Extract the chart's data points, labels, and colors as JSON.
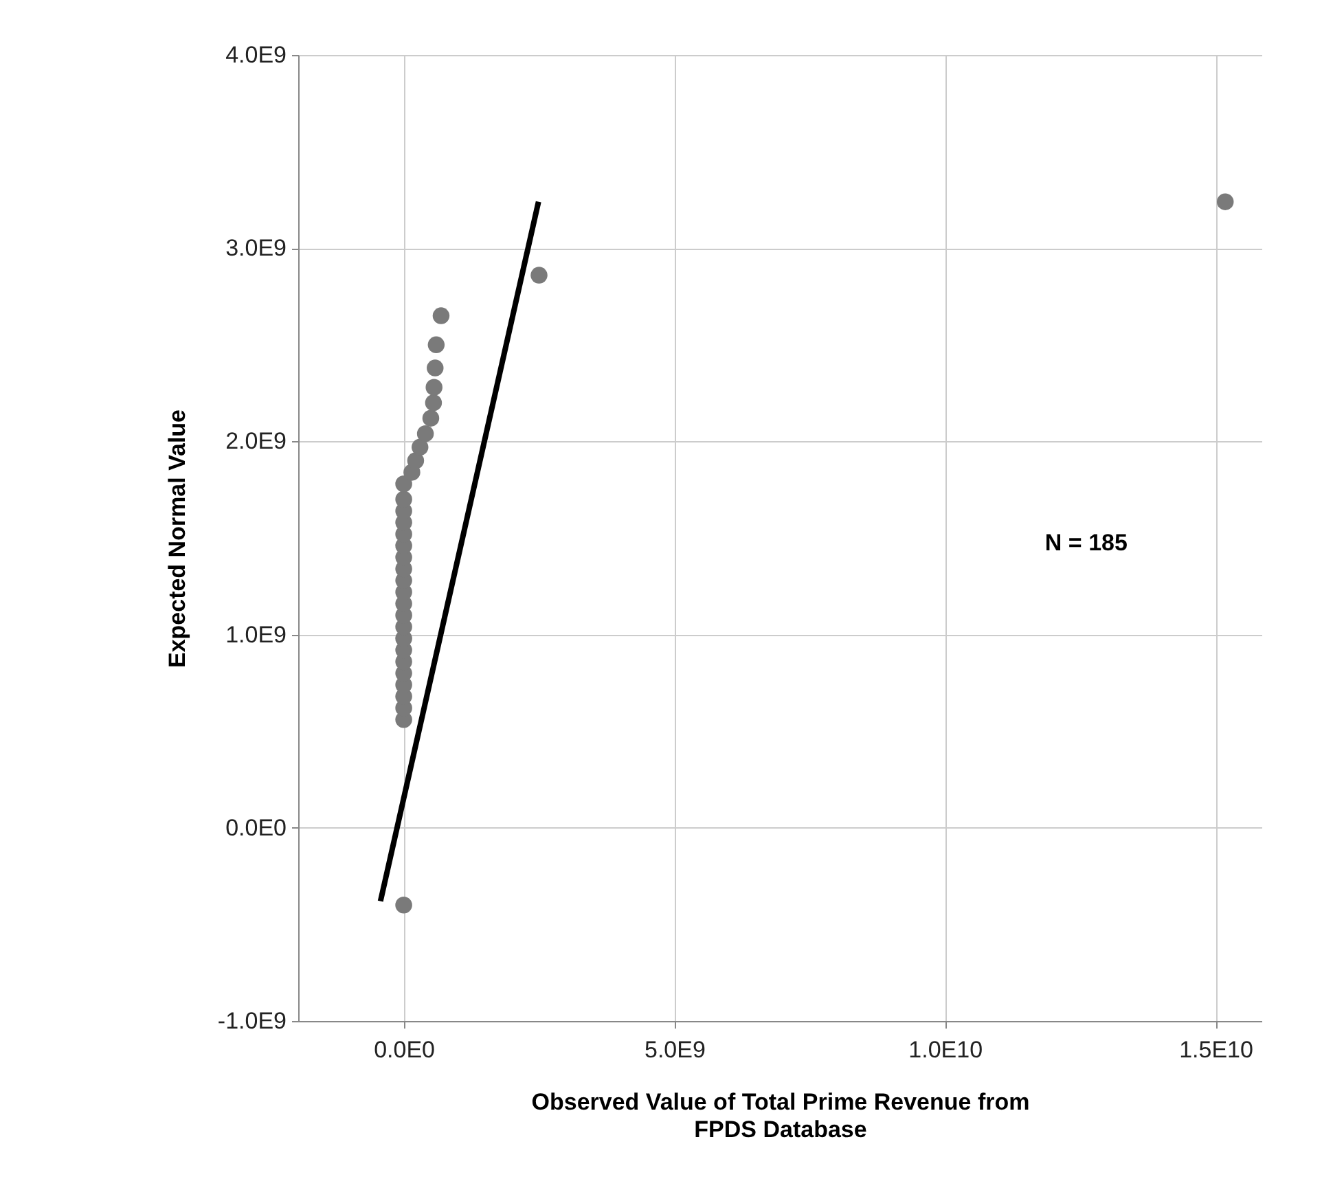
{
  "chart_data": {
    "type": "scatter",
    "xlabel": "Observed Value of Total Prime Revenue from FPDS Database",
    "ylabel": "Expected Normal Value",
    "annotations": [
      "N = 185"
    ],
    "xlim": [
      -1950000000.0,
      15850000000.0
    ],
    "ylim": [
      -1000000000.0,
      4000000000.0
    ],
    "xticks": [
      {
        "value": 0,
        "label": "0.0E0"
      },
      {
        "value": 5000000000.0,
        "label": "5.0E9"
      },
      {
        "value": 10000000000.0,
        "label": "1.0E10"
      },
      {
        "value": 15000000000.0,
        "label": "1.5E10"
      }
    ],
    "yticks": [
      {
        "value": -1000000000.0,
        "label": "-1.0E9"
      },
      {
        "value": 0,
        "label": "0.0E0"
      },
      {
        "value": 1000000000.0,
        "label": "1.0E9"
      },
      {
        "value": 2000000000.0,
        "label": "2.0E9"
      },
      {
        "value": 3000000000.0,
        "label": "3.0E9"
      },
      {
        "value": 4000000000.0,
        "label": "4.0E9"
      }
    ],
    "grid": true,
    "series": [
      {
        "color": "#7a7a7a",
        "marker": "circle",
        "x": [
          0,
          0,
          0,
          0,
          0,
          0,
          0,
          0,
          0,
          0,
          0,
          0,
          0,
          0,
          0,
          0,
          0,
          0,
          0,
          0,
          0,
          0,
          150000000.0,
          220000000.0,
          300000000.0,
          400000000.0,
          500000000.0,
          550000000.0,
          560000000.0,
          580000000.0,
          600000000.0,
          690000000.0,
          2500000000.0,
          15180000000.0
        ],
        "values": [
          -400000000.0,
          560000000.0,
          620000000.0,
          680000000.0,
          740000000.0,
          800000000.0,
          860000000.0,
          920000000.0,
          980000000.0,
          1040000000.0,
          1100000000.0,
          1160000000.0,
          1220000000.0,
          1280000000.0,
          1340000000.0,
          1400000000.0,
          1460000000.0,
          1520000000.0,
          1580000000.0,
          1640000000.0,
          1700000000.0,
          1780000000.0,
          1840000000.0,
          1900000000.0,
          1970000000.0,
          2040000000.0,
          2120000000.0,
          2200000000.0,
          2280000000.0,
          2380000000.0,
          2500000000.0,
          2650000000.0,
          2860000000.0,
          3240000000.0
        ]
      },
      {
        "type": "line",
        "color": "#000000",
        "marker": "none",
        "line_style": "solid",
        "x": [
          -430000000.0,
          2490000000.0
        ],
        "values": [
          -380000000.0,
          3240000000.0
        ]
      }
    ]
  }
}
